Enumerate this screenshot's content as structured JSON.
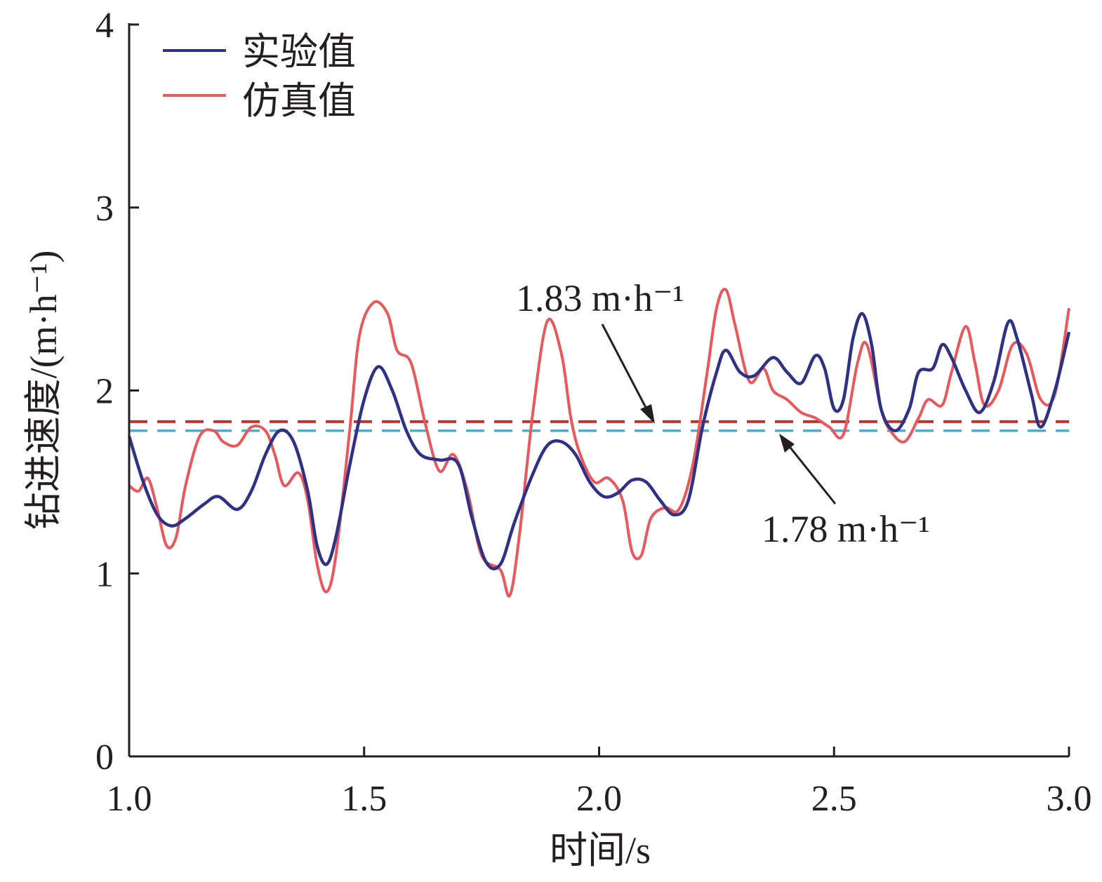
{
  "chart_data": {
    "type": "line",
    "xlabel": "时间/s",
    "ylabel": "钻进速度/(m·h⁻¹)",
    "xlim": [
      1.0,
      3.0
    ],
    "ylim": [
      0,
      4
    ],
    "x_ticks": [
      "1.0",
      "1.5",
      "2.0",
      "2.5",
      "3.0"
    ],
    "y_ticks": [
      "0",
      "1",
      "2",
      "3",
      "4"
    ],
    "grid": false,
    "legend_position": "top-left",
    "series": [
      {
        "name": "实验值",
        "color": "#2e3185",
        "points": [
          [
            1.0,
            1.75
          ],
          [
            1.03,
            1.5
          ],
          [
            1.06,
            1.32
          ],
          [
            1.09,
            1.26
          ],
          [
            1.12,
            1.3
          ],
          [
            1.16,
            1.38
          ],
          [
            1.19,
            1.42
          ],
          [
            1.23,
            1.35
          ],
          [
            1.26,
            1.45
          ],
          [
            1.29,
            1.65
          ],
          [
            1.32,
            1.78
          ],
          [
            1.35,
            1.72
          ],
          [
            1.38,
            1.45
          ],
          [
            1.4,
            1.15
          ],
          [
            1.42,
            1.05
          ],
          [
            1.44,
            1.2
          ],
          [
            1.47,
            1.6
          ],
          [
            1.5,
            1.95
          ],
          [
            1.53,
            2.13
          ],
          [
            1.56,
            2.0
          ],
          [
            1.59,
            1.78
          ],
          [
            1.62,
            1.65
          ],
          [
            1.66,
            1.62
          ],
          [
            1.7,
            1.6
          ],
          [
            1.73,
            1.3
          ],
          [
            1.76,
            1.06
          ],
          [
            1.79,
            1.05
          ],
          [
            1.82,
            1.28
          ],
          [
            1.86,
            1.55
          ],
          [
            1.89,
            1.7
          ],
          [
            1.92,
            1.72
          ],
          [
            1.95,
            1.65
          ],
          [
            1.98,
            1.5
          ],
          [
            2.01,
            1.42
          ],
          [
            2.04,
            1.44
          ],
          [
            2.07,
            1.51
          ],
          [
            2.1,
            1.5
          ],
          [
            2.13,
            1.4
          ],
          [
            2.16,
            1.32
          ],
          [
            2.19,
            1.4
          ],
          [
            2.22,
            1.8
          ],
          [
            2.25,
            2.1
          ],
          [
            2.27,
            2.22
          ],
          [
            2.3,
            2.1
          ],
          [
            2.33,
            2.08
          ],
          [
            2.37,
            2.18
          ],
          [
            2.4,
            2.1
          ],
          [
            2.43,
            2.04
          ],
          [
            2.46,
            2.19
          ],
          [
            2.48,
            2.12
          ],
          [
            2.5,
            1.9
          ],
          [
            2.52,
            1.95
          ],
          [
            2.54,
            2.28
          ],
          [
            2.56,
            2.42
          ],
          [
            2.58,
            2.25
          ],
          [
            2.6,
            1.9
          ],
          [
            2.63,
            1.78
          ],
          [
            2.66,
            1.9
          ],
          [
            2.68,
            2.1
          ],
          [
            2.71,
            2.12
          ],
          [
            2.73,
            2.25
          ],
          [
            2.75,
            2.18
          ],
          [
            2.78,
            2.0
          ],
          [
            2.81,
            1.88
          ],
          [
            2.84,
            2.05
          ],
          [
            2.87,
            2.37
          ],
          [
            2.89,
            2.28
          ],
          [
            2.92,
            1.98
          ],
          [
            2.94,
            1.8
          ],
          [
            2.97,
            2.0
          ],
          [
            3.0,
            2.32
          ]
        ]
      },
      {
        "name": "仿真值",
        "color": "#e8585c",
        "points": [
          [
            1.0,
            1.48
          ],
          [
            1.02,
            1.45
          ],
          [
            1.04,
            1.52
          ],
          [
            1.06,
            1.35
          ],
          [
            1.08,
            1.15
          ],
          [
            1.1,
            1.2
          ],
          [
            1.12,
            1.48
          ],
          [
            1.15,
            1.75
          ],
          [
            1.18,
            1.78
          ],
          [
            1.2,
            1.72
          ],
          [
            1.23,
            1.7
          ],
          [
            1.26,
            1.8
          ],
          [
            1.29,
            1.78
          ],
          [
            1.31,
            1.65
          ],
          [
            1.33,
            1.48
          ],
          [
            1.36,
            1.55
          ],
          [
            1.38,
            1.4
          ],
          [
            1.4,
            1.05
          ],
          [
            1.42,
            0.9
          ],
          [
            1.44,
            1.1
          ],
          [
            1.47,
            1.8
          ],
          [
            1.49,
            2.3
          ],
          [
            1.52,
            2.48
          ],
          [
            1.55,
            2.42
          ],
          [
            1.57,
            2.22
          ],
          [
            1.6,
            2.15
          ],
          [
            1.63,
            1.82
          ],
          [
            1.66,
            1.56
          ],
          [
            1.69,
            1.65
          ],
          [
            1.72,
            1.45
          ],
          [
            1.75,
            1.1
          ],
          [
            1.79,
            1.02
          ],
          [
            1.81,
            0.88
          ],
          [
            1.83,
            1.2
          ],
          [
            1.86,
            1.9
          ],
          [
            1.89,
            2.38
          ],
          [
            1.92,
            2.2
          ],
          [
            1.94,
            1.85
          ],
          [
            1.96,
            1.65
          ],
          [
            1.99,
            1.5
          ],
          [
            2.02,
            1.52
          ],
          [
            2.05,
            1.4
          ],
          [
            2.07,
            1.12
          ],
          [
            2.09,
            1.1
          ],
          [
            2.11,
            1.3
          ],
          [
            2.14,
            1.36
          ],
          [
            2.17,
            1.35
          ],
          [
            2.2,
            1.6
          ],
          [
            2.23,
            2.1
          ],
          [
            2.25,
            2.45
          ],
          [
            2.27,
            2.55
          ],
          [
            2.29,
            2.35
          ],
          [
            2.32,
            2.05
          ],
          [
            2.35,
            2.12
          ],
          [
            2.37,
            2.0
          ],
          [
            2.4,
            1.95
          ],
          [
            2.43,
            1.88
          ],
          [
            2.46,
            1.85
          ],
          [
            2.49,
            1.8
          ],
          [
            2.52,
            1.76
          ],
          [
            2.55,
            2.15
          ],
          [
            2.57,
            2.25
          ],
          [
            2.6,
            1.9
          ],
          [
            2.62,
            1.78
          ],
          [
            2.65,
            1.72
          ],
          [
            2.68,
            1.85
          ],
          [
            2.7,
            1.95
          ],
          [
            2.73,
            1.92
          ],
          [
            2.75,
            2.1
          ],
          [
            2.78,
            2.35
          ],
          [
            2.8,
            2.15
          ],
          [
            2.82,
            1.92
          ],
          [
            2.85,
            2.0
          ],
          [
            2.88,
            2.25
          ],
          [
            2.91,
            2.2
          ],
          [
            2.94,
            1.95
          ],
          [
            2.97,
            1.98
          ],
          [
            3.0,
            2.45
          ]
        ]
      }
    ],
    "reference_lines": [
      {
        "value": 1.83,
        "color": "#c4302b",
        "label": "1.83 m·h⁻¹"
      },
      {
        "value": 1.78,
        "color": "#4ea9d1",
        "label": "1.78 m·h⁻¹"
      }
    ]
  }
}
